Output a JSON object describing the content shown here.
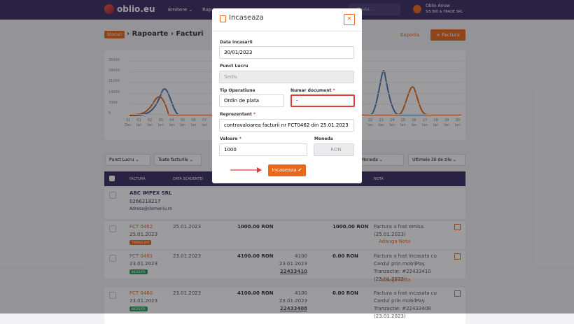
{
  "nav": {
    "logo": "oblio.eu",
    "menu": [
      "Emitere ⌄",
      "Rap"
    ],
    "search": "Cauta ...",
    "user": "Oblio Arrow",
    "company": "SIS BIO & TRADE SRL"
  },
  "breadcrumb": {
    "badge": "Stocuri",
    "sep": "›",
    "items": [
      "Rapoarte",
      "Facturi"
    ]
  },
  "actions": {
    "export": "Exporta",
    "new": "+ Factura"
  },
  "chart": {
    "y_labels": [
      "35000",
      "28000",
      "21000",
      "14000",
      "7000",
      "0"
    ],
    "x_left": [
      {
        "d": "31",
        "m": "Dec"
      },
      {
        "d": "01",
        "m": "Ian"
      },
      {
        "d": "02",
        "m": "Ian"
      },
      {
        "d": "03",
        "m": "Ian"
      },
      {
        "d": "04",
        "m": "Ian"
      },
      {
        "d": "05",
        "m": "Ian"
      },
      {
        "d": "06",
        "m": "Ian"
      },
      {
        "d": "07",
        "m": "Ian"
      }
    ],
    "x_right": [
      {
        "d": "22",
        "m": "Ian"
      },
      {
        "d": "23",
        "m": "Ian"
      },
      {
        "d": "24",
        "m": "Ian"
      },
      {
        "d": "25",
        "m": "Ian"
      },
      {
        "d": "26",
        "m": "Ian"
      },
      {
        "d": "27",
        "m": "Ian"
      },
      {
        "d": "28",
        "m": "Ian"
      },
      {
        "d": "29",
        "m": "Ian"
      },
      {
        "d": "30",
        "m": "Ian"
      }
    ]
  },
  "filters": [
    "Punct Lucru ⌄",
    "Toate facturile ⌄",
    "Moneda ⌄",
    "Ultimele 30 de zile ⌄"
  ],
  "table": {
    "headers": [
      "FACTURA",
      "DATA SCADENTEI",
      "NOTA"
    ],
    "client": {
      "name": "ABC IMPEX SRL",
      "phone": "0266218217",
      "email": "Adresa@domeniu.ro"
    },
    "rows": [
      {
        "number": "FCT 0462",
        "date": "25.01.2023",
        "badge": "TRIMISA SPV",
        "due": "25.01.2023",
        "total": "1000.00 RON",
        "paid": [
          "",
          "",
          ""
        ],
        "rest": "1000.00 RON",
        "note": "Factura a fost emisa. (25.01.2023)",
        "add": "Adauga Nota"
      },
      {
        "number": "FCT 0461",
        "date": "23.01.2023",
        "badge": "INCASATA",
        "due": "23.01.2023",
        "total": "4100.00 RON",
        "paid": [
          "4100",
          "23.01.2023",
          "22433410"
        ],
        "rest": "0.00 RON",
        "note": "Factura a fost incasata cu Cardul prin mobilPay. Tranzactie: #22433410 (23.01.2023)",
        "add": "Adauga Nota"
      },
      {
        "number": "FCT 0460",
        "date": "23.01.2023",
        "badge": "INCASATA",
        "due": "23.01.2023",
        "total": "4100.00 RON",
        "paid": [
          "4100",
          "23.01.2023",
          "22433408"
        ],
        "rest": "0.00 RON",
        "note": "Factura a fost incasata cu Cardul prin mobilPay. Tranzactie: #22433408 (23.01.2023)",
        "add": ""
      }
    ]
  },
  "modal": {
    "title": "Incaseaza",
    "close": "×",
    "fields": {
      "date": {
        "label": "Data incasarii",
        "value": "30/01/2023"
      },
      "point": {
        "label": "Punct Lucru",
        "value": "Sediu"
      },
      "type": {
        "label": "Tip Operatiune",
        "value": "Ordin de plata"
      },
      "doc": {
        "label": "Numar document",
        "mark": "*",
        "value": "-"
      },
      "rep": {
        "label": "Reprezentant",
        "mark": "*",
        "value": "contravaloarea facturii nr FCT0462 din 25.01.2023"
      },
      "amount": {
        "label": "Valoare",
        "mark": "*",
        "value": "1000"
      },
      "currency": {
        "label": "Moneda",
        "value": "RON"
      }
    },
    "submit": "Incaseaza ✔"
  }
}
